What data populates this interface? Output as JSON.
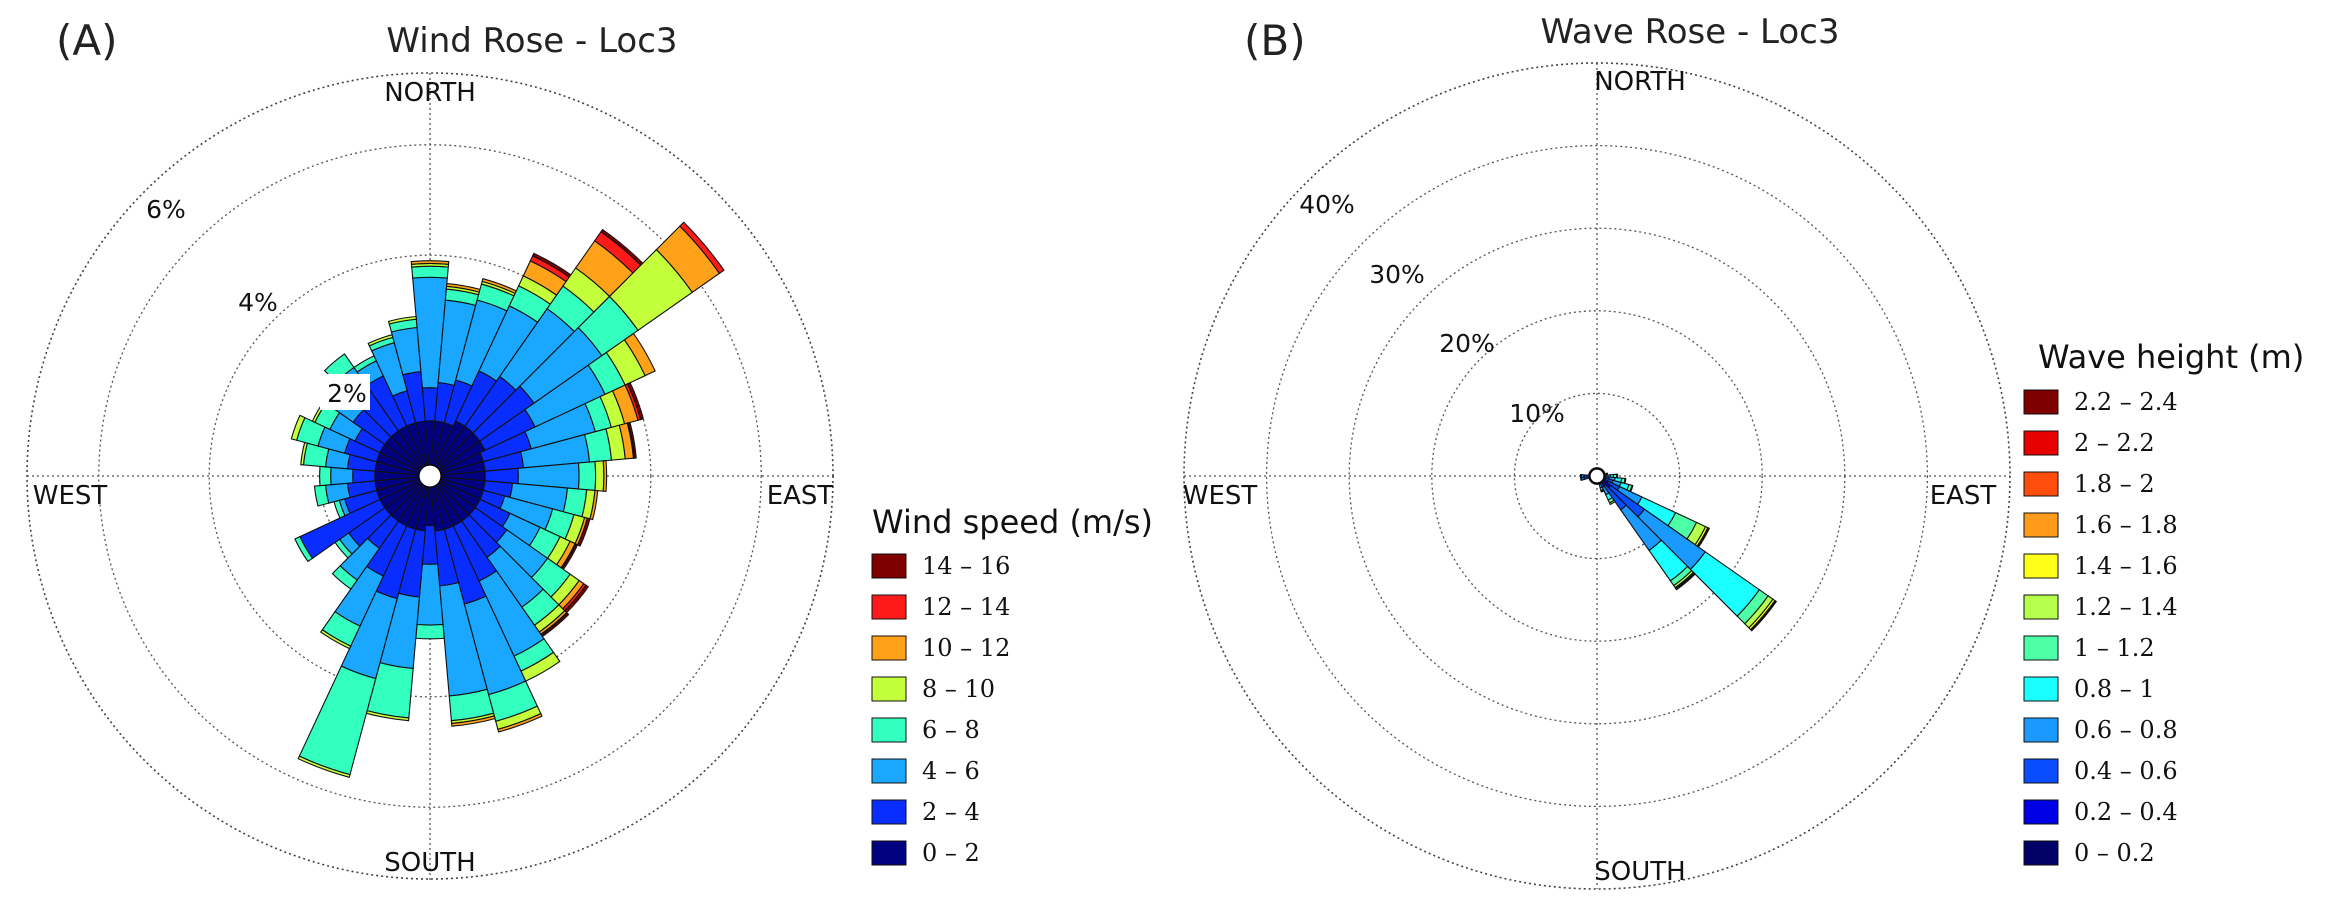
{
  "chart_data": [
    {
      "type": "windrose",
      "panel": "(A)",
      "title": "Wind Rose - Loc3",
      "compass": {
        "north": "NORTH",
        "south": "SOUTH",
        "east": "EAST",
        "west": "WEST"
      },
      "unit": "%",
      "rmax": 7.3,
      "rings": [
        {
          "value": 2,
          "label": "2%"
        },
        {
          "value": 4,
          "label": "4%"
        },
        {
          "value": 6,
          "label": "6%"
        }
      ],
      "legend": {
        "title": "Wind speed (m/s)",
        "bins": [
          {
            "label": "14 – 16",
            "color": "#7f0000"
          },
          {
            "label": "12 – 14",
            "color": "#ff1a1a"
          },
          {
            "label": "10 – 12",
            "color": "#ffa21a"
          },
          {
            "label": "8 – 10",
            "color": "#c3ff3a"
          },
          {
            "label": "6 – 8",
            "color": "#33ffbf"
          },
          {
            "label": "4 – 6",
            "color": "#1aa7ff"
          },
          {
            "label": "2 – 4",
            "color": "#0a2dff"
          },
          {
            "label": "0 – 2",
            "color": "#000080"
          }
        ]
      },
      "sector_width_deg": 10,
      "series_order": [
        "0 – 2",
        "2 – 4",
        "4 – 6",
        "6 – 8",
        "8 – 10",
        "10 – 12",
        "12 – 14",
        "14 – 16"
      ],
      "directions_deg": [
        0,
        10,
        20,
        30,
        40,
        50,
        60,
        70,
        80,
        90,
        100,
        110,
        120,
        130,
        140,
        150,
        160,
        170,
        180,
        190,
        200,
        210,
        220,
        230,
        240,
        250,
        260,
        270,
        280,
        290,
        300,
        310,
        320,
        330,
        340,
        350
      ],
      "cumulative": [
        [
          1.0,
          1.6,
          3.6,
          3.8,
          3.85,
          3.9,
          3.9,
          3.9
        ],
        [
          1.0,
          1.7,
          3.2,
          3.4,
          3.45,
          3.5,
          3.5,
          3.5
        ],
        [
          1.0,
          1.8,
          3.3,
          3.6,
          3.65,
          3.7,
          3.7,
          3.7
        ],
        [
          1.1,
          2.1,
          3.4,
          3.8,
          4.0,
          4.3,
          4.4,
          4.45
        ],
        [
          1.1,
          2.2,
          3.7,
          4.2,
          4.6,
          5.2,
          5.4,
          5.45
        ],
        [
          1.1,
          2.3,
          3.8,
          4.6,
          5.8,
          6.4,
          6.5,
          6.5
        ],
        [
          1.1,
          2.1,
          3.5,
          3.9,
          4.3,
          4.5,
          4.5,
          4.5
        ],
        [
          1.0,
          1.9,
          3.1,
          3.4,
          3.65,
          3.9,
          3.95,
          4.0
        ],
        [
          1.0,
          1.7,
          2.9,
          3.3,
          3.55,
          3.7,
          3.72,
          3.75
        ],
        [
          1.0,
          1.6,
          2.7,
          3.0,
          3.15,
          3.2,
          3.2,
          3.2
        ],
        [
          1.0,
          1.5,
          2.5,
          2.85,
          3.0,
          3.05,
          3.05,
          3.05
        ],
        [
          1.0,
          1.4,
          2.3,
          2.7,
          2.9,
          2.95,
          2.95,
          3.0
        ],
        [
          1.0,
          1.6,
          2.2,
          2.6,
          2.8,
          2.9,
          2.92,
          2.95
        ],
        [
          1.0,
          1.7,
          2.6,
          3.1,
          3.3,
          3.4,
          3.45,
          3.5
        ],
        [
          1.0,
          1.8,
          2.9,
          3.3,
          3.45,
          3.5,
          3.52,
          3.55
        ],
        [
          1.0,
          2.1,
          3.6,
          3.9,
          4.1,
          4.1,
          4.1,
          4.1
        ],
        [
          1.0,
          2.4,
          4.1,
          4.6,
          4.75,
          4.8,
          4.8,
          4.8
        ],
        [
          1.0,
          2.0,
          4.0,
          4.45,
          4.5,
          4.55,
          4.55,
          4.55
        ],
        [
          0.9,
          1.6,
          2.7,
          2.95,
          2.95,
          2.95,
          2.95,
          2.95
        ],
        [
          1.0,
          2.2,
          3.5,
          4.4,
          4.45,
          4.45,
          4.45,
          4.45
        ],
        [
          1.0,
          2.3,
          3.8,
          5.6,
          5.65,
          5.65,
          5.65,
          5.65
        ],
        [
          1.0,
          2.0,
          3.0,
          3.4,
          3.45,
          3.45,
          3.45,
          3.45
        ],
        [
          1.0,
          1.6,
          2.3,
          2.5,
          2.5,
          2.5,
          2.5,
          2.5
        ],
        [
          1.0,
          1.8,
          2.0,
          2.1,
          2.1,
          2.1,
          2.1,
          2.1
        ],
        [
          1.0,
          2.6,
          2.6,
          2.7,
          2.7,
          2.7,
          2.7,
          2.7
        ],
        [
          1.0,
          1.6,
          1.7,
          1.8,
          1.8,
          1.8,
          1.8,
          1.8
        ],
        [
          1.0,
          1.5,
          1.9,
          2.1,
          2.1,
          2.1,
          2.1,
          2.1
        ],
        [
          1.0,
          1.4,
          1.8,
          2.0,
          2.0,
          2.0,
          2.0,
          2.0
        ],
        [
          1.0,
          1.5,
          1.9,
          2.3,
          2.35,
          2.35,
          2.35,
          2.35
        ],
        [
          1.0,
          1.6,
          2.1,
          2.5,
          2.6,
          2.6,
          2.6,
          2.6
        ],
        [
          1.0,
          1.5,
          2.0,
          2.3,
          2.35,
          2.35,
          2.35,
          2.35
        ],
        [
          1.0,
          1.7,
          2.1,
          2.2,
          2.25,
          2.25,
          2.25,
          2.25
        ],
        [
          1.0,
          2.0,
          2.4,
          2.7,
          2.7,
          2.7,
          2.7,
          2.7
        ],
        [
          1.0,
          2.0,
          2.3,
          2.4,
          2.4,
          2.4,
          2.4,
          2.4
        ],
        [
          1.0,
          1.6,
          2.5,
          2.6,
          2.65,
          2.65,
          2.65,
          2.65
        ],
        [
          1.0,
          1.9,
          2.7,
          2.85,
          2.9,
          2.9,
          2.9,
          2.9
        ]
      ]
    },
    {
      "type": "waverose",
      "panel": "(B)",
      "title": "Wave Rose - Loc3",
      "compass": {
        "north": "NORTH",
        "south": "SOUTH",
        "east": "EAST",
        "west": "WEST"
      },
      "unit": "%",
      "rmax": 50,
      "rings": [
        {
          "value": 10,
          "label": "10%"
        },
        {
          "value": 20,
          "label": "20%"
        },
        {
          "value": 30,
          "label": "30%"
        },
        {
          "value": 40,
          "label": "40%"
        }
      ],
      "legend": {
        "title": "Wave height (m)",
        "bins": [
          {
            "label": "2.2 – 2.4",
            "color": "#7f0000"
          },
          {
            "label": "2 – 2.2",
            "color": "#e60000"
          },
          {
            "label": "1.8 – 2",
            "color": "#ff4d0d"
          },
          {
            "label": "1.6 – 1.8",
            "color": "#ff9a1a"
          },
          {
            "label": "1.4 – 1.6",
            "color": "#ffff1a"
          },
          {
            "label": "1.2 – 1.4",
            "color": "#b6ff4d"
          },
          {
            "label": "1 – 1.2",
            "color": "#4dffa6"
          },
          {
            "label": "0.8 – 1",
            "color": "#1affff"
          },
          {
            "label": "0.6 – 0.8",
            "color": "#1a99ff"
          },
          {
            "label": "0.4 – 0.6",
            "color": "#0a4dff"
          },
          {
            "label": "0.2 – 0.4",
            "color": "#0000e6"
          },
          {
            "label": "0 – 0.2",
            "color": "#000066"
          }
        ]
      },
      "sector_width_deg": 10,
      "series_order": [
        "0 – 0.2",
        "0.2 – 0.4",
        "0.4 – 0.6",
        "0.6 – 0.8",
        "0.8 – 1",
        "1 – 1.2",
        "1.2 – 1.4",
        "1.4 – 1.6",
        "1.6 – 1.8",
        "1.8 – 2",
        "2 – 2.2",
        "2.2 – 2.4"
      ],
      "directions_deg": [
        0,
        10,
        20,
        30,
        40,
        50,
        60,
        70,
        80,
        90,
        100,
        110,
        120,
        130,
        140,
        150,
        160,
        170,
        180,
        190,
        200,
        210,
        220,
        230,
        240,
        250,
        260,
        270,
        280,
        290,
        300,
        310,
        320,
        330,
        340,
        350
      ],
      "cumulative": [
        [
          0.3,
          0.6,
          0.8,
          0.9,
          1.0,
          1.0,
          1.0,
          1.0,
          1.0,
          1.0,
          1.0,
          1.0
        ],
        [
          0.3,
          0.6,
          0.8,
          0.9,
          1.0,
          1.0,
          1.0,
          1.0,
          1.0,
          1.0,
          1.0,
          1.0
        ],
        [
          0.3,
          0.6,
          0.8,
          0.9,
          1.0,
          1.0,
          1.0,
          1.0,
          1.0,
          1.0,
          1.0,
          1.0
        ],
        [
          0.3,
          0.6,
          0.8,
          0.9,
          1.0,
          1.0,
          1.0,
          1.0,
          1.0,
          1.0,
          1.0,
          1.0
        ],
        [
          0.3,
          0.6,
          0.8,
          0.9,
          1.0,
          1.0,
          1.0,
          1.0,
          1.0,
          1.0,
          1.0,
          1.0
        ],
        [
          0.3,
          0.6,
          0.8,
          0.9,
          1.0,
          1.0,
          1.0,
          1.0,
          1.0,
          1.0,
          1.0,
          1.0
        ],
        [
          0.3,
          0.6,
          0.8,
          0.9,
          1.0,
          1.0,
          1.0,
          1.0,
          1.0,
          1.0,
          1.0,
          1.0
        ],
        [
          0.3,
          0.6,
          0.8,
          0.9,
          1.0,
          1.0,
          1.0,
          1.0,
          1.0,
          1.0,
          1.0,
          1.0
        ],
        [
          0.3,
          0.6,
          0.8,
          1.0,
          1.2,
          1.3,
          1.3,
          1.3,
          1.3,
          1.3,
          1.3,
          1.3
        ],
        [
          0.3,
          0.7,
          1.0,
          1.6,
          2.0,
          2.4,
          2.5,
          2.5,
          2.5,
          2.5,
          2.5,
          2.5
        ],
        [
          0.4,
          0.9,
          1.5,
          2.2,
          3.0,
          3.4,
          3.5,
          3.5,
          3.5,
          3.5,
          3.5,
          3.5
        ],
        [
          0.4,
          1.0,
          2.0,
          3.0,
          4.0,
          4.4,
          4.5,
          4.5,
          4.5,
          4.5,
          4.5,
          4.5
        ],
        [
          0.5,
          1.5,
          3.0,
          6.0,
          10.5,
          13.3,
          14.5,
          14.8,
          14.9,
          15.0,
          15.0,
          15.0
        ],
        [
          0.5,
          2.0,
          7.0,
          16.0,
          24.0,
          25.3,
          26.0,
          26.3,
          26.4,
          26.5,
          26.5,
          26.5
        ],
        [
          0.5,
          1.5,
          5.0,
          11.0,
          15.5,
          16.2,
          16.5,
          16.6,
          16.7,
          16.8,
          16.8,
          16.8
        ],
        [
          0.4,
          0.8,
          1.5,
          2.5,
          3.2,
          3.6,
          3.8,
          3.8,
          3.8,
          3.8,
          3.8,
          3.8
        ],
        [
          0.4,
          0.7,
          1.0,
          1.5,
          1.8,
          1.9,
          2.0,
          2.0,
          2.0,
          2.0,
          2.0,
          2.0
        ],
        [
          0.3,
          0.6,
          0.8,
          0.9,
          1.0,
          1.0,
          1.0,
          1.0,
          1.0,
          1.0,
          1.0,
          1.0
        ],
        [
          0.3,
          0.6,
          0.8,
          0.9,
          1.0,
          1.0,
          1.0,
          1.0,
          1.0,
          1.0,
          1.0,
          1.0
        ],
        [
          0.3,
          0.6,
          0.8,
          0.9,
          1.0,
          1.0,
          1.0,
          1.0,
          1.0,
          1.0,
          1.0,
          1.0
        ],
        [
          0.3,
          0.6,
          0.8,
          0.9,
          1.0,
          1.0,
          1.0,
          1.0,
          1.0,
          1.0,
          1.0,
          1.0
        ],
        [
          0.3,
          0.6,
          0.8,
          0.9,
          1.0,
          1.0,
          1.0,
          1.0,
          1.0,
          1.0,
          1.0,
          1.0
        ],
        [
          0.3,
          0.6,
          0.8,
          0.9,
          1.0,
          1.0,
          1.0,
          1.0,
          1.0,
          1.0,
          1.0,
          1.0
        ],
        [
          0.3,
          0.6,
          0.8,
          0.9,
          1.0,
          1.0,
          1.0,
          1.0,
          1.0,
          1.0,
          1.0,
          1.0
        ],
        [
          0.3,
          0.6,
          0.8,
          0.9,
          1.0,
          1.0,
          1.0,
          1.0,
          1.0,
          1.0,
          1.0,
          1.0
        ],
        [
          0.3,
          0.6,
          0.8,
          0.9,
          1.0,
          1.0,
          1.0,
          1.0,
          1.0,
          1.0,
          1.0,
          1.0
        ],
        [
          0.4,
          1.0,
          1.6,
          1.9,
          2.0,
          2.0,
          2.0,
          2.0,
          2.0,
          2.0,
          2.0,
          2.0
        ],
        [
          0.4,
          1.0,
          1.6,
          1.9,
          2.0,
          2.0,
          2.0,
          2.0,
          2.0,
          2.0,
          2.0,
          2.0
        ],
        [
          0.3,
          0.6,
          0.8,
          0.9,
          1.0,
          1.0,
          1.0,
          1.0,
          1.0,
          1.0,
          1.0,
          1.0
        ],
        [
          0.3,
          0.6,
          0.8,
          0.9,
          1.0,
          1.0,
          1.0,
          1.0,
          1.0,
          1.0,
          1.0,
          1.0
        ],
        [
          0.3,
          0.6,
          0.8,
          0.9,
          1.0,
          1.0,
          1.0,
          1.0,
          1.0,
          1.0,
          1.0,
          1.0
        ],
        [
          0.3,
          0.6,
          0.8,
          0.9,
          1.0,
          1.0,
          1.0,
          1.0,
          1.0,
          1.0,
          1.0,
          1.0
        ],
        [
          0.3,
          0.6,
          0.8,
          0.9,
          1.0,
          1.0,
          1.0,
          1.0,
          1.0,
          1.0,
          1.0,
          1.0
        ],
        [
          0.3,
          0.6,
          0.8,
          0.9,
          1.0,
          1.0,
          1.0,
          1.0,
          1.0,
          1.0,
          1.0,
          1.0
        ],
        [
          0.3,
          0.6,
          0.8,
          0.9,
          1.0,
          1.0,
          1.0,
          1.0,
          1.0,
          1.0,
          1.0,
          1.0
        ],
        [
          0.3,
          0.6,
          0.8,
          0.9,
          1.0,
          1.0,
          1.0,
          1.0,
          1.0,
          1.0,
          1.0,
          1.0
        ]
      ]
    }
  ]
}
